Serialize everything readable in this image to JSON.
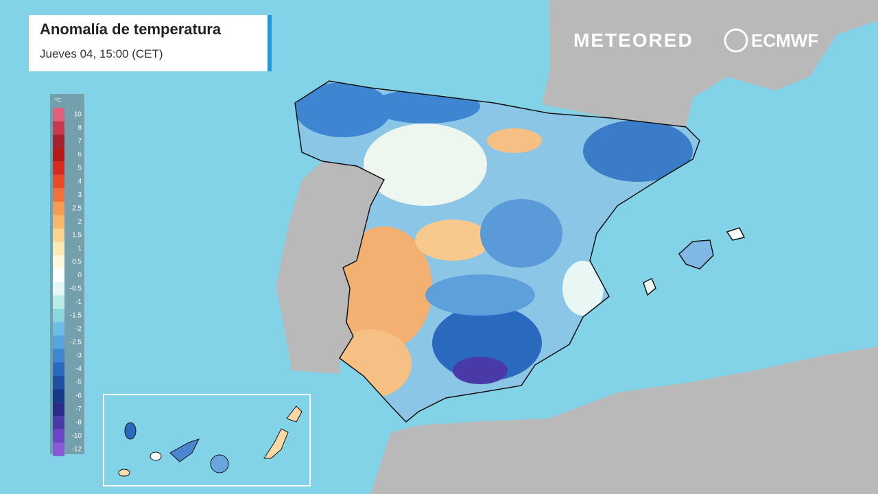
{
  "header": {
    "title": "Anomalía de temperatura",
    "subtitle": "Jueves 04, 15:00 (CET)"
  },
  "logos": [
    "METEORED",
    "ECMWF"
  ],
  "legend": {
    "unit": "°C",
    "items": [
      {
        "label": "10",
        "color": "#e0607a"
      },
      {
        "label": "8",
        "color": "#c8384f"
      },
      {
        "label": "7",
        "color": "#a8202e"
      },
      {
        "label": "6",
        "color": "#b81818"
      },
      {
        "label": "5",
        "color": "#d82a1e"
      },
      {
        "label": "4",
        "color": "#ea4a26"
      },
      {
        "label": "3",
        "color": "#f2703a"
      },
      {
        "label": "2.5",
        "color": "#f79a52"
      },
      {
        "label": "2",
        "color": "#f9b76c"
      },
      {
        "label": "1.5",
        "color": "#fbd38e"
      },
      {
        "label": "1",
        "color": "#fce9b4"
      },
      {
        "label": "0.5",
        "color": "#fdf7dc"
      },
      {
        "label": "0",
        "color": "#ffffff"
      },
      {
        "label": "-0.5",
        "color": "#e6f8f6"
      },
      {
        "label": "-1",
        "color": "#b8ece6"
      },
      {
        "label": "-1.5",
        "color": "#8cd8e0"
      },
      {
        "label": "-2",
        "color": "#6cbee6"
      },
      {
        "label": "-2.5",
        "color": "#58a4e0"
      },
      {
        "label": "-3",
        "color": "#3e86d2"
      },
      {
        "label": "-4",
        "color": "#2a6abe"
      },
      {
        "label": "-5",
        "color": "#1c50a4"
      },
      {
        "label": "-6",
        "color": "#163a8a"
      },
      {
        "label": "-7",
        "color": "#2a2a88"
      },
      {
        "label": "-8",
        "color": "#4a3aa8"
      },
      {
        "label": "-10",
        "color": "#6a46c6"
      },
      {
        "label": "-12",
        "color": "#8a5ad6"
      }
    ]
  }
}
